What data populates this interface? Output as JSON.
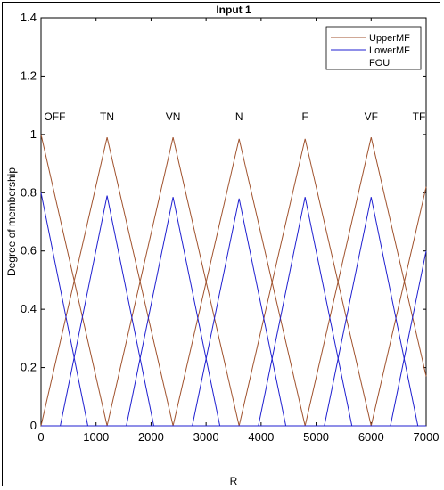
{
  "chart_data": {
    "type": "line",
    "title": "Input 1",
    "xlabel": "R",
    "ylabel": "Degree of membership",
    "xlim": [
      0,
      7000
    ],
    "ylim": [
      0,
      1.4
    ],
    "xticks": [
      "0",
      "1000",
      "2000",
      "3000",
      "4000",
      "5000",
      "6000",
      "7000"
    ],
    "yticks": [
      "0",
      "0.2",
      "0.4",
      "0.6",
      "0.8",
      "1",
      "1.2",
      "1.4"
    ],
    "mf_labels": [
      {
        "text": "OFF",
        "x": 250
      },
      {
        "text": "TN",
        "x": 1200
      },
      {
        "text": "VN",
        "x": 2400
      },
      {
        "text": "N",
        "x": 3600
      },
      {
        "text": "F",
        "x": 4800
      },
      {
        "text": "VF",
        "x": 6000
      },
      {
        "text": "TF",
        "x": 6870
      }
    ],
    "legend": {
      "placement": "top-right",
      "entries": [
        "UpperMF",
        "LowerMF",
        "FOU"
      ]
    },
    "series": [
      {
        "name": "UpperMF",
        "color": "#a0522d",
        "lines": [
          [
            [
              0,
              1.0
            ],
            [
              1200,
              0
            ]
          ],
          [
            [
              0,
              0
            ],
            [
              1200,
              0.99
            ],
            [
              2400,
              0
            ]
          ],
          [
            [
              1200,
              0
            ],
            [
              2400,
              0.99
            ],
            [
              3600,
              0
            ]
          ],
          [
            [
              2400,
              0
            ],
            [
              3600,
              0.985
            ],
            [
              4800,
              0
            ]
          ],
          [
            [
              3600,
              0
            ],
            [
              4800,
              0.985
            ],
            [
              6000,
              0
            ]
          ],
          [
            [
              4800,
              0
            ],
            [
              6000,
              0.99
            ],
            [
              7000,
              0.17
            ]
          ],
          [
            [
              6000,
              0
            ],
            [
              7000,
              0.82
            ]
          ]
        ]
      },
      {
        "name": "LowerMF",
        "color": "#1f1fd0",
        "lines": [
          [
            [
              0,
              0.8
            ],
            [
              850,
              0
            ]
          ],
          [
            [
              350,
              0
            ],
            [
              1200,
              0.79
            ],
            [
              2050,
              0
            ]
          ],
          [
            [
              1550,
              0
            ],
            [
              2400,
              0.785
            ],
            [
              3250,
              0
            ]
          ],
          [
            [
              2750,
              0
            ],
            [
              3600,
              0.78
            ],
            [
              4450,
              0
            ]
          ],
          [
            [
              3950,
              0
            ],
            [
              4800,
              0.785
            ],
            [
              5650,
              0
            ]
          ],
          [
            [
              5150,
              0
            ],
            [
              6000,
              0.785
            ],
            [
              6850,
              0
            ]
          ],
          [
            [
              6350,
              0
            ],
            [
              7000,
              0.6
            ]
          ]
        ],
        "baseline": [
          [
            0,
            0
          ],
          [
            7000,
            0
          ]
        ]
      }
    ]
  }
}
